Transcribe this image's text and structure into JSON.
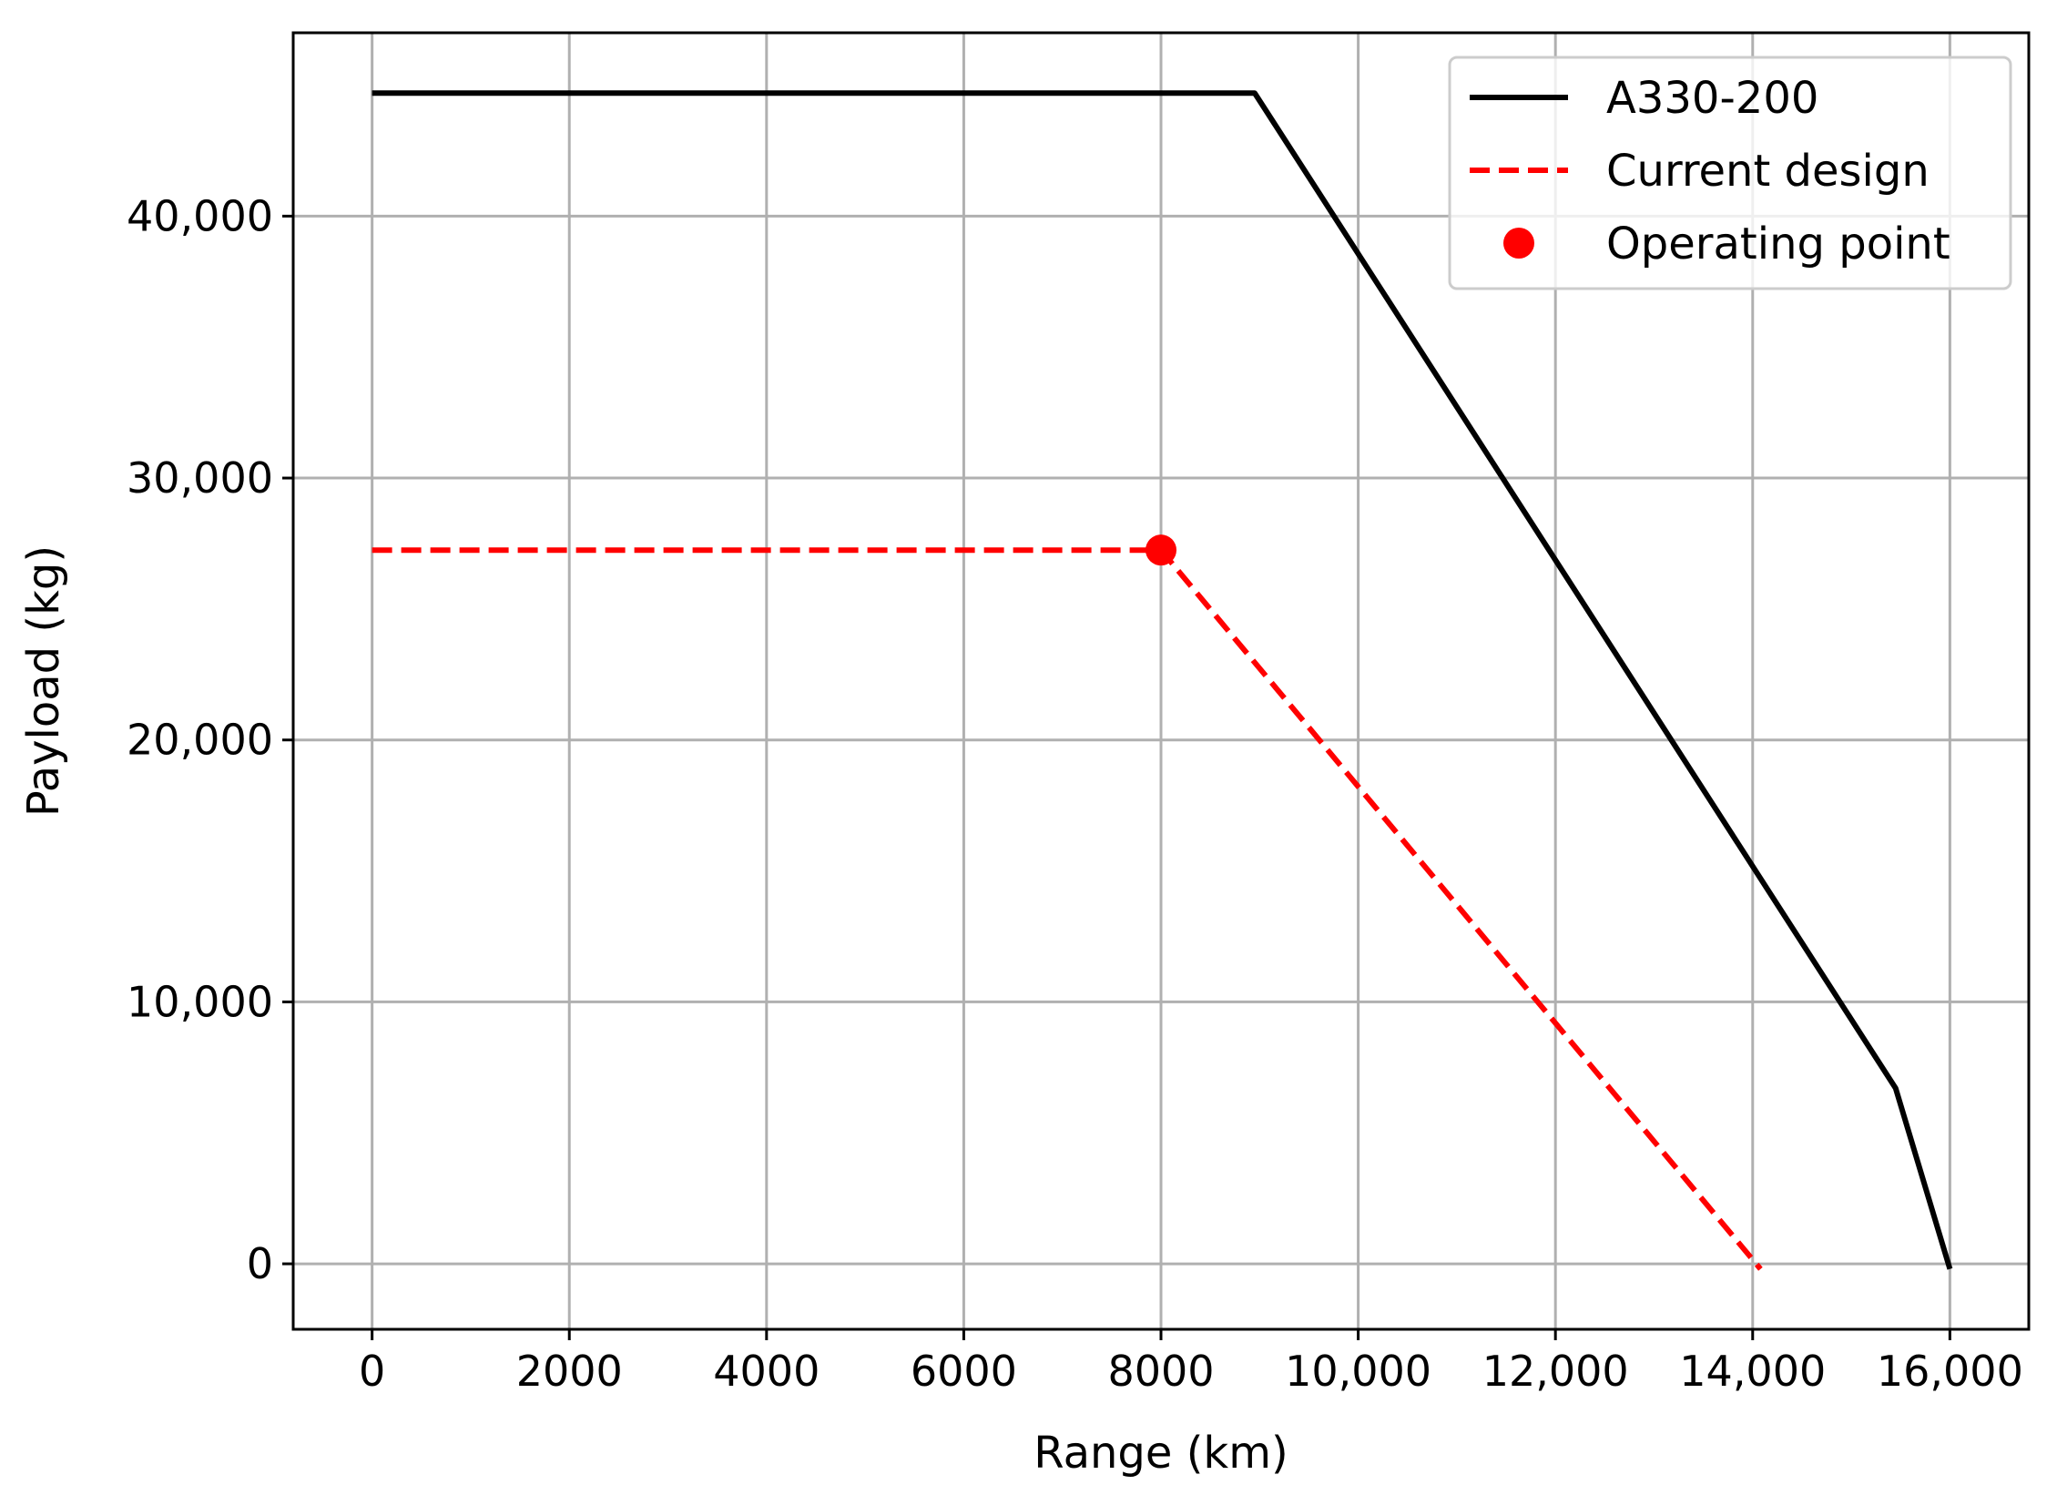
{
  "chart_data": {
    "type": "line",
    "title": "",
    "xlabel": "Range (km)",
    "ylabel": "Payload (kg)",
    "xlim": [
      -800,
      16800
    ],
    "ylim": [
      -2500,
      47000
    ],
    "grid": true,
    "legend_position": "top-right",
    "x_ticks": [
      0,
      2000,
      4000,
      6000,
      8000,
      10000,
      12000,
      14000,
      16000
    ],
    "x_tick_labels": [
      "0",
      "2000",
      "4000",
      "6000",
      "8000",
      "10,000",
      "12,000",
      "14,000",
      "16,000"
    ],
    "y_ticks": [
      0,
      10000,
      20000,
      30000,
      40000
    ],
    "y_tick_labels": [
      "0",
      "10,000",
      "20,000",
      "30,000",
      "40,000"
    ],
    "series": [
      {
        "name": "A330-200",
        "style": "solid",
        "color": "#000000",
        "x": [
          0,
          8950,
          15450,
          16000
        ],
        "y": [
          44700,
          44700,
          6700,
          -200
        ]
      },
      {
        "name": "Current design",
        "style": "dashed",
        "color": "#ff0000",
        "x": [
          0,
          8000,
          14080
        ],
        "y": [
          27250,
          27250,
          -200
        ]
      }
    ],
    "points": [
      {
        "name": "Operating point",
        "color": "#ff0000",
        "x": 8000,
        "y": 27250
      }
    ]
  }
}
